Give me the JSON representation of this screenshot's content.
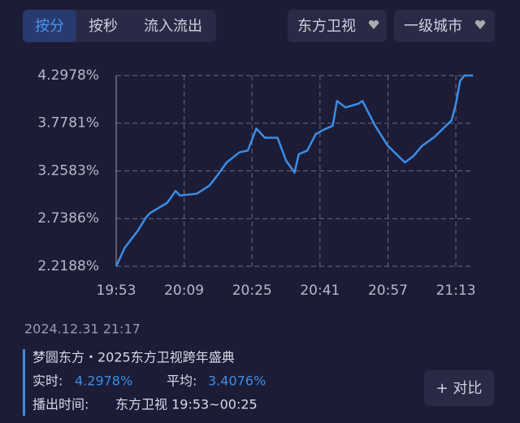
{
  "tabs": [
    "按分",
    "按秒",
    "流入流出"
  ],
  "dropdowns": [
    "东方卫视",
    "一级城市"
  ],
  "chart_data": {
    "type": "line",
    "color": "#3a8ee6",
    "x": [
      "19:53",
      "19:55",
      "19:58",
      "20:00",
      "20:01",
      "20:05",
      "20:07",
      "20:08",
      "20:12",
      "20:15",
      "20:17",
      "20:19",
      "20:22",
      "20:24",
      "20:26",
      "20:28",
      "20:31",
      "20:33",
      "20:35",
      "20:36",
      "20:38",
      "20:40",
      "20:42",
      "20:44",
      "20:45",
      "20:47",
      "20:50",
      "20:51",
      "20:54",
      "20:57",
      "20:59",
      "21:01",
      "21:03",
      "21:05",
      "21:08",
      "21:10",
      "21:12",
      "21:13",
      "21:14",
      "21:15",
      "21:17"
    ],
    "values": [
      2.2188,
      2.42,
      2.6,
      2.75,
      2.8,
      2.91,
      3.04,
      2.99,
      3.01,
      3.1,
      3.22,
      3.35,
      3.46,
      3.48,
      3.72,
      3.62,
      3.62,
      3.37,
      3.24,
      3.44,
      3.48,
      3.66,
      3.71,
      3.75,
      4.02,
      3.95,
      3.99,
      4.02,
      3.75,
      3.53,
      3.44,
      3.35,
      3.42,
      3.53,
      3.63,
      3.72,
      3.81,
      3.99,
      4.24,
      4.2978,
      4.2978
    ],
    "xlim": [
      "19:53",
      "21:17"
    ],
    "xticks": [
      "19:53",
      "20:09",
      "20:25",
      "20:41",
      "20:57",
      "21:13"
    ],
    "ylim": [
      2.2188,
      4.2978
    ],
    "yticks": [
      {
        "value": 2.2188,
        "label": "2.2188%"
      },
      {
        "value": 2.7386,
        "label": "2.7386%"
      },
      {
        "value": 3.2583,
        "label": "3.2583%"
      },
      {
        "value": 3.7781,
        "label": "3.7781%"
      },
      {
        "value": 4.2978,
        "label": "4.2978%"
      }
    ],
    "grid": true
  },
  "timestamp": "2024.12.31 21:17",
  "program": {
    "title": "梦圆东方・2025东方卫视跨年盛典",
    "realtime_label": "实时:",
    "realtime_value": "4.2978%",
    "average_label": "平均:",
    "average_value": "3.4076%",
    "airtime_label": "播出时间:",
    "airtime_value": "东方卫视 19:53~00:25"
  },
  "compare_button": "+ 对比"
}
